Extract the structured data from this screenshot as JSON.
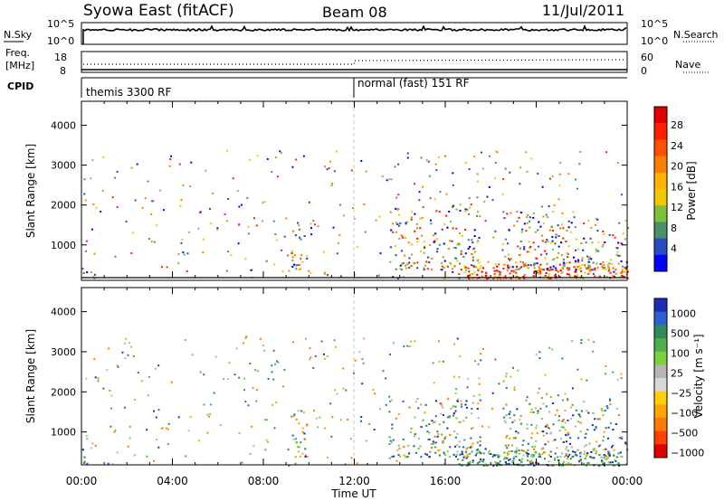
{
  "header": {
    "station": "Syowa East (fitACF)",
    "beam": "Beam 08",
    "date": "11/Jul/2011"
  },
  "top_panels": {
    "nsky": {
      "label": "N.Sky",
      "ticks": [
        "10^5",
        "10^0"
      ]
    },
    "nsearch": {
      "label": "N.Search",
      "ticks": [
        "10^5",
        "10^0"
      ]
    },
    "freq": {
      "label_line1": "Freq.",
      "label_line2": "[MHz]",
      "ticks": [
        "18",
        "8"
      ]
    },
    "nave": {
      "label": "Nave",
      "ticks": [
        "60",
        "0"
      ]
    },
    "cpid": {
      "label": "CPID",
      "modes": [
        {
          "name": "themis 3300 RF",
          "start_hour": 0,
          "end_hour": 12
        },
        {
          "name": "normal (fast) 151 RF",
          "start_hour": 12,
          "end_hour": 24
        }
      ]
    }
  },
  "chart_data": [
    {
      "type": "heatmap",
      "name": "power",
      "ylabel": "Slant Range [km]",
      "xlabel": "Time UT",
      "x_ticks": [
        "00:00",
        "04:00",
        "08:00",
        "12:00",
        "16:00",
        "20:00",
        "00:00"
      ],
      "xlim_hours": [
        0,
        24
      ],
      "y_ticks": [
        1000,
        2000,
        3000,
        4000
      ],
      "ylim": [
        180,
        4600
      ],
      "colorbar": {
        "label": "Power [dB]",
        "ticks": [
          "4",
          "8",
          "12",
          "16",
          "20",
          "24",
          "28"
        ],
        "colors": [
          "#0000ff",
          "#2a4cc0",
          "#4a8f6a",
          "#7fbf3f",
          "#f0c800",
          "#ffb300",
          "#ff8000",
          "#ff5000",
          "#ff2000",
          "#e00000"
        ]
      },
      "echo_regions": [
        {
          "start_hour": 0.0,
          "end_hour": 0.6,
          "range_min_km": 180,
          "range_max_km": 800,
          "density": 0.25
        },
        {
          "start_hour": 9.2,
          "end_hour": 9.9,
          "range_min_km": 400,
          "range_max_km": 1600,
          "density": 0.45
        },
        {
          "start_hour": 16.5,
          "end_hour": 24.0,
          "range_min_km": 180,
          "range_max_km": 600,
          "density": 0.85
        },
        {
          "start_hour": 13.5,
          "end_hour": 17.5,
          "range_min_km": 400,
          "range_max_km": 2000,
          "density": 0.35
        },
        {
          "start_hour": 18.5,
          "end_hour": 21.5,
          "range_min_km": 400,
          "range_max_km": 2000,
          "density": 0.4
        },
        {
          "start_hour": 21.5,
          "end_hour": 24.0,
          "range_min_km": 400,
          "range_max_km": 1700,
          "density": 0.35
        }
      ]
    },
    {
      "type": "heatmap",
      "name": "velocity",
      "ylabel": "Slant Range [km]",
      "xlabel": "Time UT",
      "x_ticks": [
        "00:00",
        "04:00",
        "08:00",
        "12:00",
        "16:00",
        "20:00",
        "00:00"
      ],
      "xlim_hours": [
        0,
        24
      ],
      "y_ticks": [
        1000,
        2000,
        3000,
        4000
      ],
      "ylim": [
        180,
        4600
      ],
      "colorbar": {
        "label": "Velocity [m s⁻¹]",
        "ticks": [
          "1000",
          "500",
          "100",
          "25",
          "−25",
          "−100",
          "−500",
          "−1000"
        ],
        "colors": [
          "#1a2fb0",
          "#2f60d0",
          "#2e8b57",
          "#4caf50",
          "#7cd23a",
          "#b5b5b5",
          "#d8d8d8",
          "#ffd000",
          "#ffa500",
          "#ff7a00",
          "#ff4000",
          "#e00000"
        ]
      },
      "echo_regions": [
        {
          "start_hour": 0.0,
          "end_hour": 0.6,
          "range_min_km": 180,
          "range_max_km": 800,
          "density": 0.25
        },
        {
          "start_hour": 9.2,
          "end_hour": 9.9,
          "range_min_km": 400,
          "range_max_km": 1600,
          "density": 0.45
        },
        {
          "start_hour": 16.5,
          "end_hour": 24.0,
          "range_min_km": 180,
          "range_max_km": 600,
          "density": 0.85
        },
        {
          "start_hour": 13.5,
          "end_hour": 17.5,
          "range_min_km": 400,
          "range_max_km": 2000,
          "density": 0.35
        },
        {
          "start_hour": 18.5,
          "end_hour": 21.5,
          "range_min_km": 400,
          "range_max_km": 2000,
          "density": 0.4
        },
        {
          "start_hour": 21.5,
          "end_hour": 24.0,
          "range_min_km": 400,
          "range_max_km": 1700,
          "density": 0.35
        }
      ]
    }
  ]
}
